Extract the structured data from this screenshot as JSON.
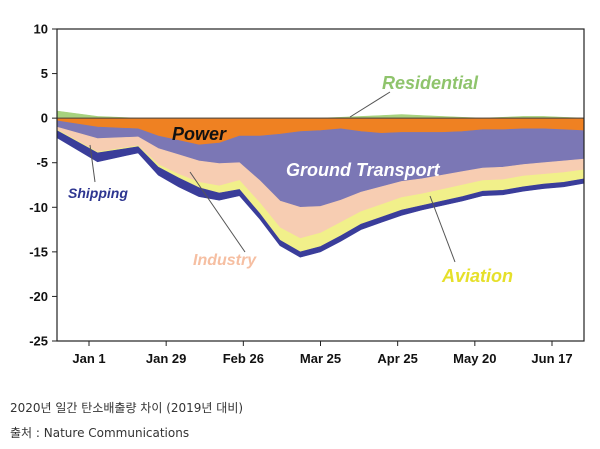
{
  "chart_data": {
    "type": "area",
    "title": "",
    "xlabel": "",
    "ylabel": "",
    "ylim": [
      -25,
      10
    ],
    "yticks": [
      10,
      5,
      0,
      -5,
      -10,
      -15,
      -20,
      -25
    ],
    "xticks": [
      "Jan 1",
      "Jan 29",
      "Feb 26",
      "Mar 25",
      "Apr 25",
      "May 20",
      "Jun 17"
    ],
    "x_day_index": [
      0,
      14,
      28,
      35,
      42,
      49,
      56,
      63,
      70,
      77,
      84,
      91,
      98,
      105,
      112,
      119,
      126,
      133,
      140,
      147,
      154,
      161,
      168,
      175,
      182
    ],
    "stacking_order": [
      "Residential",
      "Power",
      "Ground Transport",
      "Industry",
      "Aviation",
      "Shipping"
    ],
    "series": [
      {
        "name": "Residential",
        "color": "#a7d27e",
        "values": [
          0.8,
          0.2,
          0.0,
          0.0,
          0.0,
          0.0,
          0.0,
          0.0,
          0.0,
          0.0,
          0.0,
          0.0,
          0.1,
          0.2,
          0.3,
          0.4,
          0.3,
          0.2,
          0.1,
          0.0,
          0.1,
          0.2,
          0.2,
          0.1,
          0.0
        ]
      },
      {
        "name": "Power",
        "color": "#ef8122",
        "values": [
          -0.3,
          -1.0,
          -1.2,
          -2.0,
          -2.5,
          -3.0,
          -2.8,
          -2.0,
          -2.0,
          -1.8,
          -1.5,
          -1.4,
          -1.2,
          -1.5,
          -1.7,
          -1.6,
          -1.6,
          -1.6,
          -1.5,
          -1.3,
          -1.3,
          -1.2,
          -1.2,
          -1.3,
          -1.4
        ]
      },
      {
        "name": "Ground Transport",
        "color": "#7b77b5",
        "values": [
          -0.7,
          -1.3,
          -0.9,
          -1.4,
          -1.6,
          -1.8,
          -2.3,
          -3.0,
          -5.0,
          -7.5,
          -8.5,
          -8.5,
          -8.0,
          -6.8,
          -6.0,
          -5.5,
          -5.2,
          -4.8,
          -4.5,
          -4.3,
          -4.2,
          -4.0,
          -3.8,
          -3.5,
          -3.2
        ]
      },
      {
        "name": "Industry",
        "color": "#f7cdb2",
        "values": [
          -0.3,
          -1.5,
          -1.0,
          -1.8,
          -2.2,
          -2.4,
          -2.5,
          -2.0,
          -2.5,
          -3.0,
          -3.5,
          -3.0,
          -2.5,
          -2.2,
          -2.0,
          -1.8,
          -1.7,
          -1.6,
          -1.5,
          -1.4,
          -1.4,
          -1.3,
          -1.3,
          -1.3,
          -1.2
        ]
      },
      {
        "name": "Aviation",
        "color": "#f1f08a",
        "values": [
          -0.1,
          -0.1,
          -0.1,
          -0.3,
          -0.4,
          -0.6,
          -0.8,
          -1.0,
          -1.2,
          -1.4,
          -1.5,
          -1.5,
          -1.5,
          -1.4,
          -1.4,
          -1.4,
          -1.3,
          -1.3,
          -1.3,
          -1.2,
          -1.2,
          -1.2,
          -1.1,
          -1.1,
          -1.0
        ]
      },
      {
        "name": "Shipping",
        "color": "#3a3d9a",
        "values": [
          -0.8,
          -1.0,
          -0.7,
          -0.9,
          -1.0,
          -1.0,
          -0.8,
          -0.7,
          -0.6,
          -0.6,
          -0.6,
          -0.6,
          -0.6,
          -0.6,
          -0.6,
          -0.6,
          -0.5,
          -0.5,
          -0.5,
          -0.5,
          -0.5,
          -0.5,
          -0.5,
          -0.5,
          -0.5
        ]
      }
    ],
    "labels": {
      "residential": "Residential",
      "power": "Power",
      "ground_transport": "Ground Transport",
      "shipping": "Shipping",
      "industry": "Industry",
      "aviation": "Aviation"
    },
    "label_colors": {
      "residential": "#8fc46c",
      "power": "#111111",
      "ground_transport": "#ffffff",
      "shipping": "#2d3590",
      "industry": "#f6bfa2",
      "aviation": "#e6e02a"
    },
    "grid": false,
    "legend": "inline-labels"
  },
  "caption": {
    "line1": "2020년 일간 탄소배출량 차이 (2019년 대비)",
    "line2": "출처 : Nature Communications"
  }
}
